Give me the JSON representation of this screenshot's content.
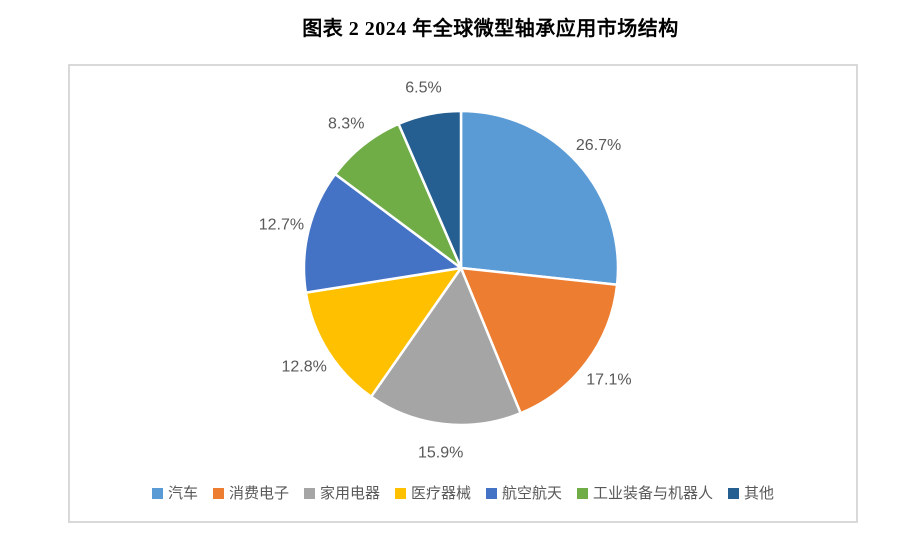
{
  "frame": {
    "border_color": "#D9D9D9",
    "background": "#FFFFFF"
  },
  "chart_data": {
    "type": "pie",
    "title": "图表 2 2024 年全球微型轴承应用市场结构",
    "unit": "%",
    "total": 100,
    "start_angle_deg": 0,
    "direction": "clockwise",
    "label_position": "outside-end",
    "label_color": "#595959",
    "slice_border_color": "#FFFFFF",
    "legend_position": "bottom",
    "series": [
      {
        "name": "汽车",
        "value": 26.7,
        "label": "26.7%",
        "color": "#5B9BD5"
      },
      {
        "name": "消费电子",
        "value": 17.1,
        "label": "17.1%",
        "color": "#ED7D31"
      },
      {
        "name": "家用电器",
        "value": 15.9,
        "label": "15.9%",
        "color": "#A5A5A5"
      },
      {
        "name": "医疗器械",
        "value": 12.8,
        "label": "12.8%",
        "color": "#FFC000"
      },
      {
        "name": "航空航天",
        "value": 12.7,
        "label": "12.7%",
        "color": "#4472C4"
      },
      {
        "name": "工业装备与机器人",
        "value": 8.3,
        "label": "8.3%",
        "color": "#70AD47"
      },
      {
        "name": "其他",
        "value": 6.5,
        "label": "6.5%",
        "color": "#255E91"
      }
    ]
  }
}
